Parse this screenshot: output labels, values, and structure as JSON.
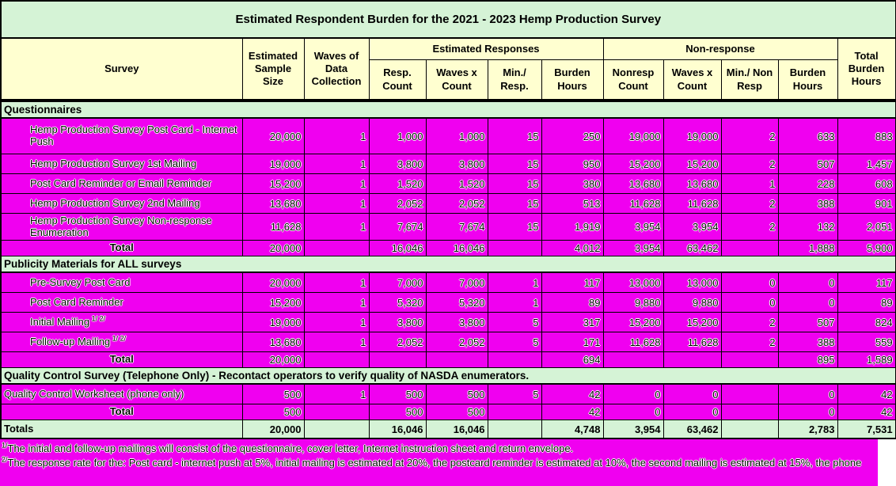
{
  "title": "Estimated Respondent Burden for the 2021 - 2023 Hemp Production Survey",
  "colors": {
    "row_magenta": "#F000F0",
    "header_yellow": "#FFFFD0",
    "section_green": "#D5F3D6",
    "border_black": "#000000"
  },
  "header": {
    "survey": "Survey",
    "sample_size": "Estimated Sample Size",
    "waves": "Waves of Data Collection",
    "est_responses_group": "Estimated Responses",
    "non_response_group": "Non-response",
    "total_burden": "Total Burden Hours",
    "sub": [
      "Resp. Count",
      "Waves x Count",
      "Min./ Resp.",
      "Burden Hours",
      "Nonresp Count",
      "Waves x Count",
      "Min./ Non Resp",
      "Burden Hours"
    ]
  },
  "rows": [
    {
      "type": "section",
      "label": "Questionnaires"
    },
    {
      "type": "data",
      "size": "tall",
      "indent": true,
      "label": "Hemp Production Survey Post Card - Internet Push",
      "cells": [
        "20,000",
        "1",
        "1,000",
        "1,000",
        "15",
        "250",
        "19,000",
        "19,000",
        "2",
        "633",
        "883"
      ]
    },
    {
      "type": "data",
      "indent": true,
      "label": "Hemp Production Survey 1st Mailing",
      "cells": [
        "19,000",
        "1",
        "3,800",
        "3,800",
        "15",
        "950",
        "15,200",
        "15,200",
        "2",
        "507",
        "1,457"
      ]
    },
    {
      "type": "data",
      "indent": true,
      "label": "Post Card Reminder or Email Reminder",
      "cells": [
        "15,200",
        "1",
        "1,520",
        "1,520",
        "15",
        "380",
        "13,680",
        "13,680",
        "1",
        "228",
        "608"
      ]
    },
    {
      "type": "data",
      "indent": true,
      "label": "Hemp Production Survey 2nd Mailing",
      "cells": [
        "13,680",
        "1",
        "2,052",
        "2,052",
        "15",
        "513",
        "11,628",
        "11,628",
        "2",
        "388",
        "901"
      ]
    },
    {
      "type": "data",
      "size": "tall2",
      "indent": true,
      "label": "Hemp Production Survey Non-response Enumeration",
      "cells": [
        "11,628",
        "1",
        "7,674",
        "7,674",
        "15",
        "1,919",
        "3,954",
        "3,954",
        "2",
        "132",
        "2,051"
      ]
    },
    {
      "type": "total",
      "label": "Total",
      "cells": [
        "20,000",
        "",
        "16,046",
        "16,046",
        "",
        "4,012",
        "3,954",
        "63,462",
        "",
        "1,888",
        "5,900"
      ]
    },
    {
      "type": "section",
      "label": "Publicity Materials for ALL surveys"
    },
    {
      "type": "data",
      "indent": true,
      "label": "Pre-Survey Post Card",
      "cells": [
        "20,000",
        "1",
        "7,000",
        "7,000",
        "1",
        "117",
        "13,000",
        "13,000",
        "0",
        "0",
        "117"
      ]
    },
    {
      "type": "data",
      "indent": true,
      "label": "Post Card Reminder",
      "cells": [
        "15,200",
        "1",
        "5,320",
        "5,320",
        "1",
        "89",
        "9,880",
        "9,880",
        "0",
        "0",
        "89"
      ]
    },
    {
      "type": "data",
      "indent": true,
      "label": "Initial Mailing",
      "sup": "1/ 2/",
      "cells": [
        "19,000",
        "1",
        "3,800",
        "3,800",
        "5",
        "317",
        "15,200",
        "15,200",
        "2",
        "507",
        "824"
      ]
    },
    {
      "type": "data",
      "indent": true,
      "label": "Follow-up Mailing",
      "sup": "1/ 2/",
      "cells": [
        "13,680",
        "1",
        "2,052",
        "2,052",
        "5",
        "171",
        "11,628",
        "11,628",
        "2",
        "388",
        "559"
      ]
    },
    {
      "type": "total",
      "label": "Total",
      "cells": [
        "20,000",
        "",
        "",
        "",
        "",
        "694",
        "",
        "",
        "",
        "895",
        "1,589"
      ]
    },
    {
      "type": "section",
      "label": "Quality Control Survey (Telephone Only) - Recontact operators to verify quality of NASDA enumerators."
    },
    {
      "type": "data",
      "indent": false,
      "label": "Quality Control Worksheet (phone only)",
      "cells": [
        "500",
        "1",
        "500",
        "500",
        "5",
        "42",
        "0",
        "0",
        "",
        "0",
        "42"
      ]
    },
    {
      "type": "total",
      "label": "Total",
      "cells": [
        "500",
        "",
        "500",
        "500",
        "",
        "42",
        "0",
        "0",
        "",
        "0",
        "42"
      ]
    },
    {
      "type": "grand",
      "label": "Totals",
      "cells": [
        "20,000",
        "",
        "16,046",
        "16,046",
        "",
        "4,748",
        "3,954",
        "63,462",
        "",
        "2,783",
        "7,531"
      ]
    }
  ],
  "footnotes": [
    {
      "marker": "1/",
      "text": "The initial and follow-up mailings will consist of the questionnaire, cover letter, Internet instruction sheet and return envelope."
    },
    {
      "marker": "2/",
      "text": "The response rate for the: Post card - internet push at 5%, initial mailing is estimated at 20%, the postcard reminder is estimated at 10%, the second mailing is estimated at 15%, the phone"
    }
  ]
}
